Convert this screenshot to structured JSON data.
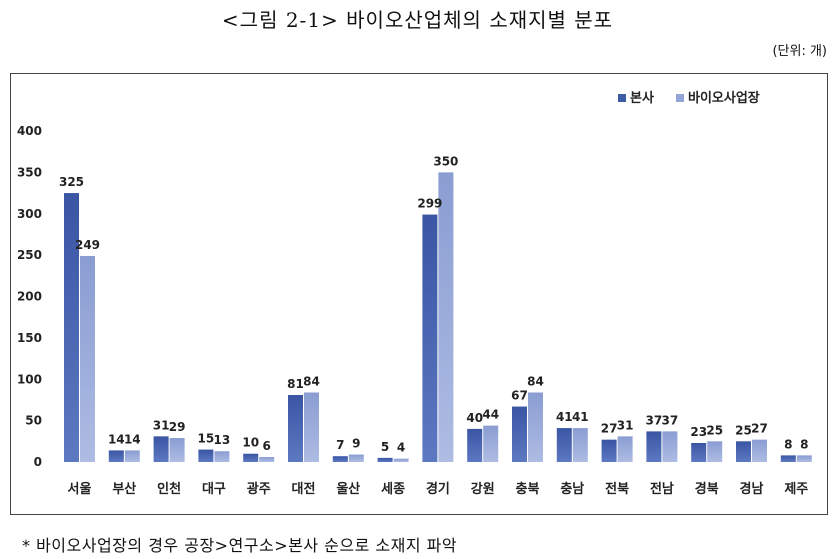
{
  "title": "<그림 2-1> 바이오산업체의 소재지별 분포",
  "unit_label": "(단위: 개)",
  "footnote": "* 바이오사업장의 경우 공장>연구소>본사 순으로 소재지 파악",
  "colors": {
    "series_1": "#3f5ba8",
    "series_2": "#93a5d6",
    "axis_text": "#222222",
    "frame": "#444444"
  },
  "chart_data": {
    "type": "bar",
    "categories": [
      "서울",
      "부산",
      "인천",
      "대구",
      "광주",
      "대전",
      "울산",
      "세종",
      "경기",
      "강원",
      "충북",
      "충남",
      "전북",
      "전남",
      "경북",
      "경남",
      "제주"
    ],
    "series": [
      {
        "name": "본사",
        "values": [
          325,
          14,
          31,
          15,
          10,
          81,
          7,
          5,
          299,
          40,
          67,
          41,
          27,
          37,
          23,
          25,
          8
        ]
      },
      {
        "name": "바이오사업장",
        "values": [
          249,
          14,
          29,
          13,
          6,
          84,
          9,
          4,
          350,
          44,
          84,
          41,
          31,
          37,
          25,
          27,
          8
        ]
      }
    ],
    "ylim": [
      0,
      400
    ],
    "yticks": [
      0,
      50,
      100,
      150,
      200,
      250,
      300,
      350,
      400
    ],
    "grid": false,
    "legend_position": "top-right"
  }
}
